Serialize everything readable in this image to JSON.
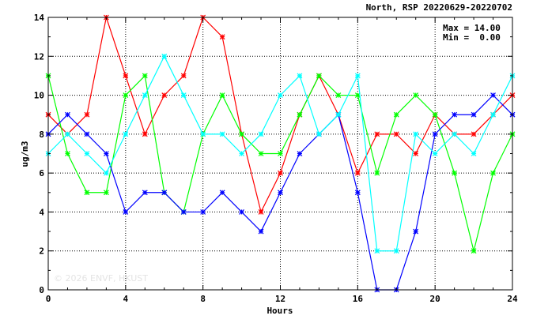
{
  "chart_data": {
    "type": "line",
    "title": "North, RSP 20220629-20220702",
    "xlabel": "Hours",
    "ylabel": "ug/m3",
    "xlim": [
      0,
      24
    ],
    "ylim": [
      0,
      14
    ],
    "x_ticks": [
      0,
      4,
      8,
      12,
      16,
      20,
      24
    ],
    "y_ticks": [
      0,
      2,
      4,
      6,
      8,
      10,
      12,
      14
    ],
    "grid": true,
    "stats": {
      "max_label": "Max = 14.00",
      "min_label": "Min =  0.00"
    },
    "watermark": "© 2026  ENVF, HKUST",
    "x": [
      0,
      1,
      2,
      3,
      4,
      5,
      6,
      7,
      8,
      9,
      10,
      11,
      12,
      13,
      14,
      15,
      16,
      17,
      18,
      19,
      20,
      21,
      22,
      23,
      24
    ],
    "series": [
      {
        "color": "#ff0000",
        "values": [
          9,
          8,
          9,
          14,
          11,
          8,
          10,
          11,
          14,
          13,
          8,
          4,
          6,
          9,
          11,
          9,
          6,
          8,
          8,
          7,
          9,
          8,
          8,
          9,
          10
        ]
      },
      {
        "color": "#00ff00",
        "values": [
          11,
          7,
          5,
          5,
          10,
          11,
          5,
          4,
          8,
          10,
          8,
          7,
          7,
          9,
          11,
          10,
          10,
          6,
          9,
          10,
          9,
          6,
          2,
          6,
          8
        ]
      },
      {
        "color": "#0000ff",
        "values": [
          8,
          9,
          8,
          7,
          4,
          5,
          5,
          4,
          4,
          5,
          4,
          3,
          5,
          7,
          8,
          9,
          5,
          0,
          0,
          3,
          8,
          9,
          9,
          10,
          9
        ]
      },
      {
        "color": "#00ffff",
        "values": [
          7,
          8,
          7,
          6,
          8,
          10,
          12,
          10,
          8,
          8,
          7,
          8,
          10,
          11,
          8,
          9,
          11,
          2,
          2,
          8,
          7,
          8,
          7,
          9,
          11
        ]
      }
    ]
  }
}
